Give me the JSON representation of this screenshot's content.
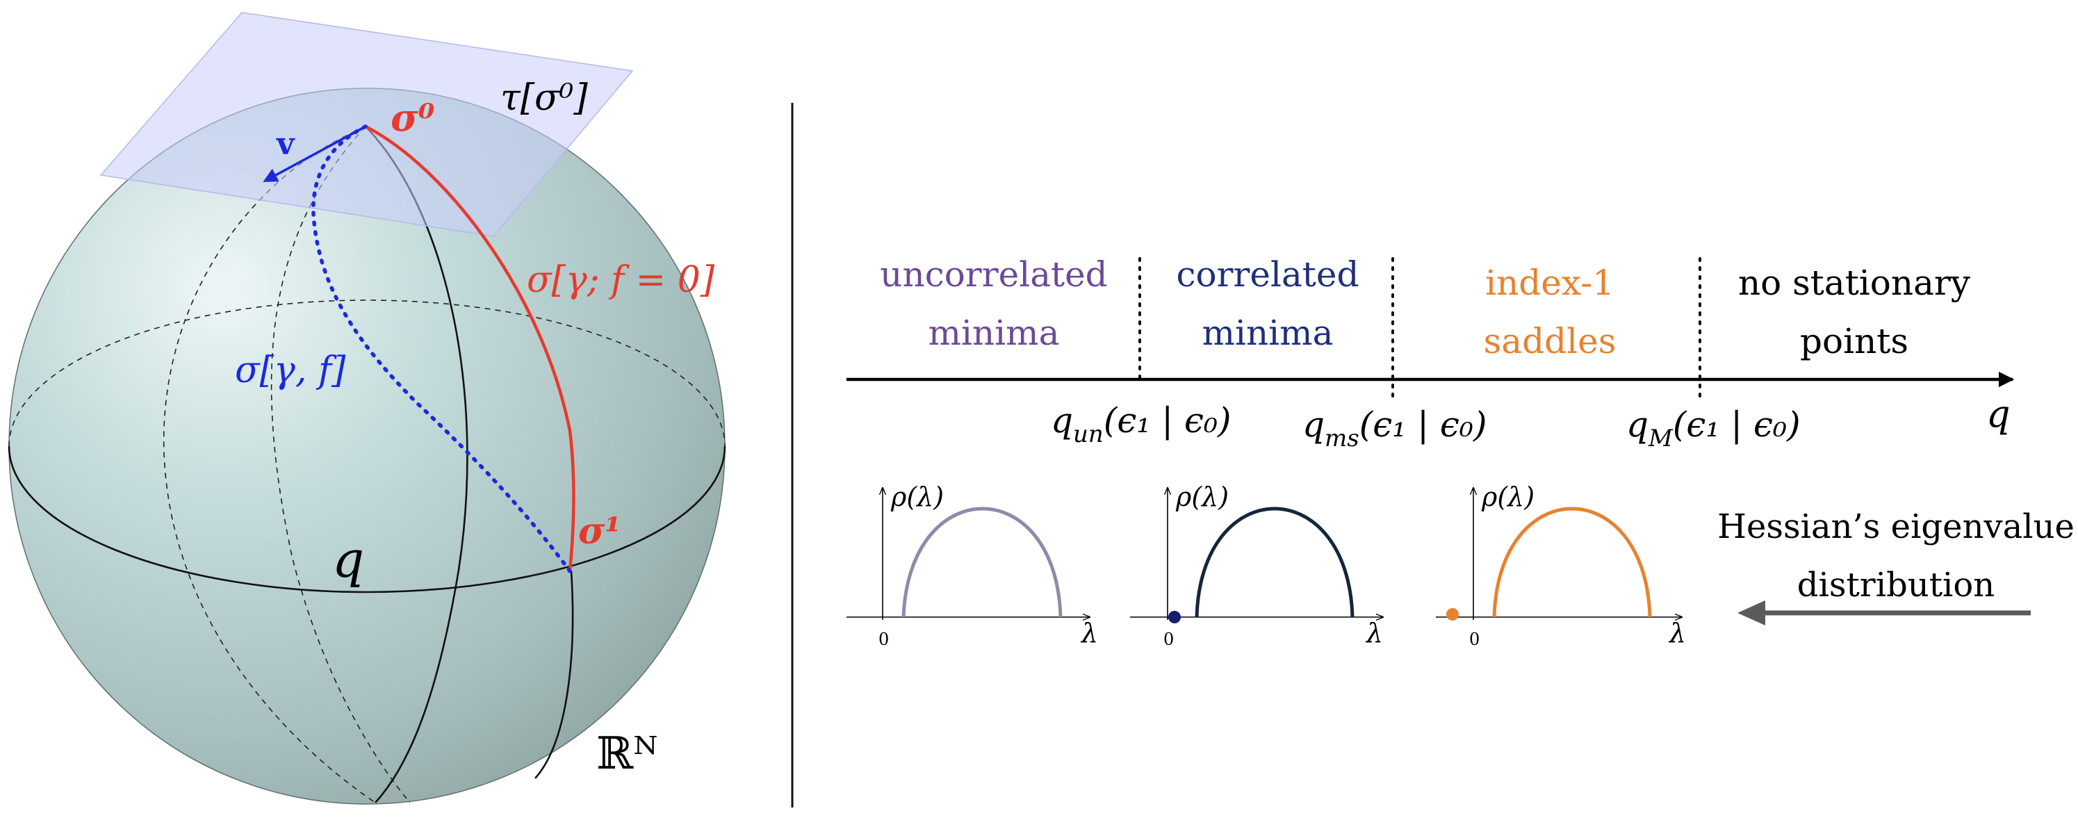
{
  "colors": {
    "sphere_light": "#e8f2f2",
    "sphere_mid": "#b9d2d1",
    "sphere_dark": "#92a7a6",
    "tangent_plane": "#c9cdfa",
    "red": "#e8392c",
    "blue": "#1a29e0",
    "purple": "#6b4a97",
    "navy": "#1f2f7b",
    "orange": "#e7822f",
    "lavender": "#8f8aa9",
    "dark_navy": "#14263a",
    "gray_arrow": "#5b5b5b",
    "black": "#000000"
  },
  "sphere": {
    "tangent_label": "τ[σ⁰]",
    "vector_label": "v",
    "sigma0_label": "σ⁰",
    "sigma1_label": "σ¹",
    "red_path_label": "σ[γ; f = 0]",
    "blue_path_label": "σ[γ, f]",
    "overlap_label": "q",
    "space_label": "ℝᴺ"
  },
  "phases": [
    {
      "line1": "uncorrelated",
      "line2": "minima",
      "color": "#6b4a97"
    },
    {
      "line1": "correlated",
      "line2": "minima",
      "color": "#1f2f7b"
    },
    {
      "line1": "index-1",
      "line2": "saddles",
      "color": "#e7822f"
    },
    {
      "line1": "no stationary",
      "line2": "points",
      "color": "#000000"
    }
  ],
  "thresholds": [
    {
      "main": "q",
      "sub": "un",
      "args": "(ϵ₁ | ϵ₀)"
    },
    {
      "main": "q",
      "sub": "ms",
      "args": "(ϵ₁ | ϵ₀)"
    },
    {
      "main": "q",
      "sub": "M",
      "args": "(ϵ₁ | ϵ₀)"
    }
  ],
  "axis_label": "q",
  "hessian": {
    "ylabel": "ρ(λ)",
    "xlabel": "λ",
    "origin_label": "0",
    "panels": [
      {
        "color": "#8f8aa9",
        "isolated_eigenvalue": false
      },
      {
        "color": "#14263a",
        "isolated_eigenvalue": true,
        "dot_color": "#14206e",
        "dot_position": "at zero"
      },
      {
        "color": "#e7822f",
        "isolated_eigenvalue": true,
        "dot_color": "#e7822f",
        "dot_position": "negative"
      }
    ]
  },
  "hessian_caption": {
    "line1": "Hessian’s eigenvalue",
    "line2": "distribution"
  }
}
